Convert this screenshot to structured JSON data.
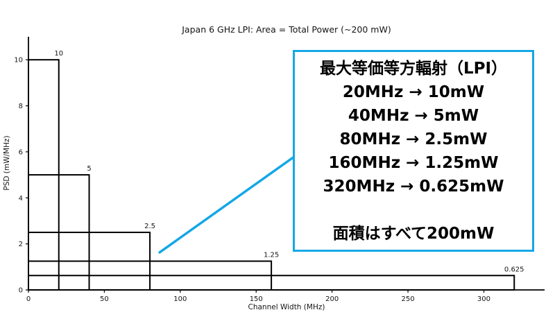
{
  "chart_data": {
    "type": "bar",
    "title": "Japan 6 GHz LPI: Area = Total Power (~200 mW)",
    "xlabel": "Channel Width (MHz)",
    "ylabel": "PSD (mW/MHz)",
    "xlim": [
      0,
      340
    ],
    "ylim": [
      0,
      11
    ],
    "xticks": [
      0,
      50,
      100,
      150,
      200,
      250,
      300
    ],
    "yticks": [
      0,
      2,
      4,
      6,
      8,
      10
    ],
    "grid": false,
    "legend": false,
    "bars": [
      {
        "channel_width_mhz": 20,
        "psd_mw_per_mhz": 10,
        "label": "10"
      },
      {
        "channel_width_mhz": 40,
        "psd_mw_per_mhz": 5,
        "label": "5"
      },
      {
        "channel_width_mhz": 80,
        "psd_mw_per_mhz": 2.5,
        "label": "2.5"
      },
      {
        "channel_width_mhz": 160,
        "psd_mw_per_mhz": 1.25,
        "label": "1.25"
      },
      {
        "channel_width_mhz": 320,
        "psd_mw_per_mhz": 0.625,
        "label": "0.625"
      }
    ]
  },
  "annotation": {
    "lines": [
      "最大等価等方輻射（LPI）",
      "20MHz → 10mW",
      "40MHz → 5mW",
      "80MHz → 2.5mW",
      "160MHz → 1.25mW",
      "320MHz → 0.625mW",
      "",
      "面積はすべて200mW"
    ],
    "border_color": "#14a7e6",
    "connector_target": {
      "x_mhz": 86.4,
      "psd": 1.63
    }
  },
  "colors": {
    "accent": "#14a7e6",
    "bar_stroke": "#000000",
    "text": "#141414",
    "background": "#ffffff"
  }
}
